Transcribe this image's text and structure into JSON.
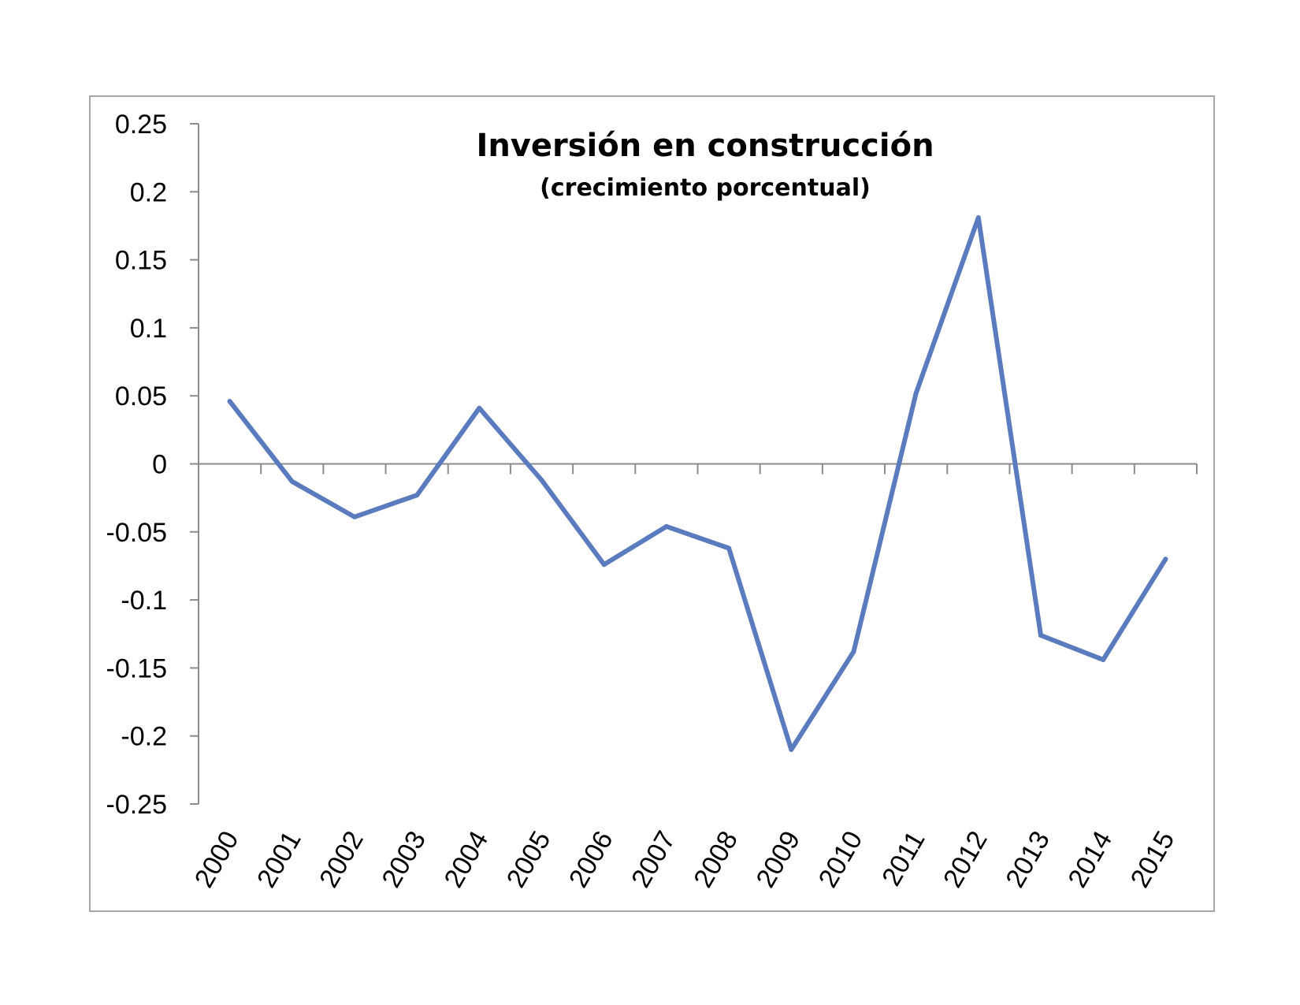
{
  "chart_data": {
    "type": "line",
    "title": "Inversión en construcción",
    "subtitle": "(crecimiento porcentual)",
    "xlabel": "",
    "ylabel": "",
    "categories": [
      "2000",
      "2001",
      "2002",
      "2003",
      "2004",
      "2005",
      "2006",
      "2007",
      "2008",
      "2009",
      "2010",
      "2011",
      "2012",
      "2013",
      "2014",
      "2015"
    ],
    "series": [
      {
        "values": [
          0.046,
          -0.013,
          -0.039,
          -0.023,
          0.041,
          -0.012,
          -0.074,
          -0.046,
          -0.062,
          -0.21,
          -0.138,
          0.052,
          0.181,
          -0.126,
          -0.144,
          -0.07
        ]
      }
    ],
    "y_ticks": [
      "0.25",
      "0.2",
      "0.15",
      "0.1",
      "0.05",
      "0",
      "-0.05",
      "-0.1",
      "-0.15",
      "-0.2",
      "-0.25"
    ],
    "ylim": [
      -0.25,
      0.25
    ],
    "grid": false,
    "legend": "none",
    "colors": {
      "line": "#5b7bbf",
      "axis": "#8c8c8c",
      "frame": "#a6a6a6"
    }
  }
}
